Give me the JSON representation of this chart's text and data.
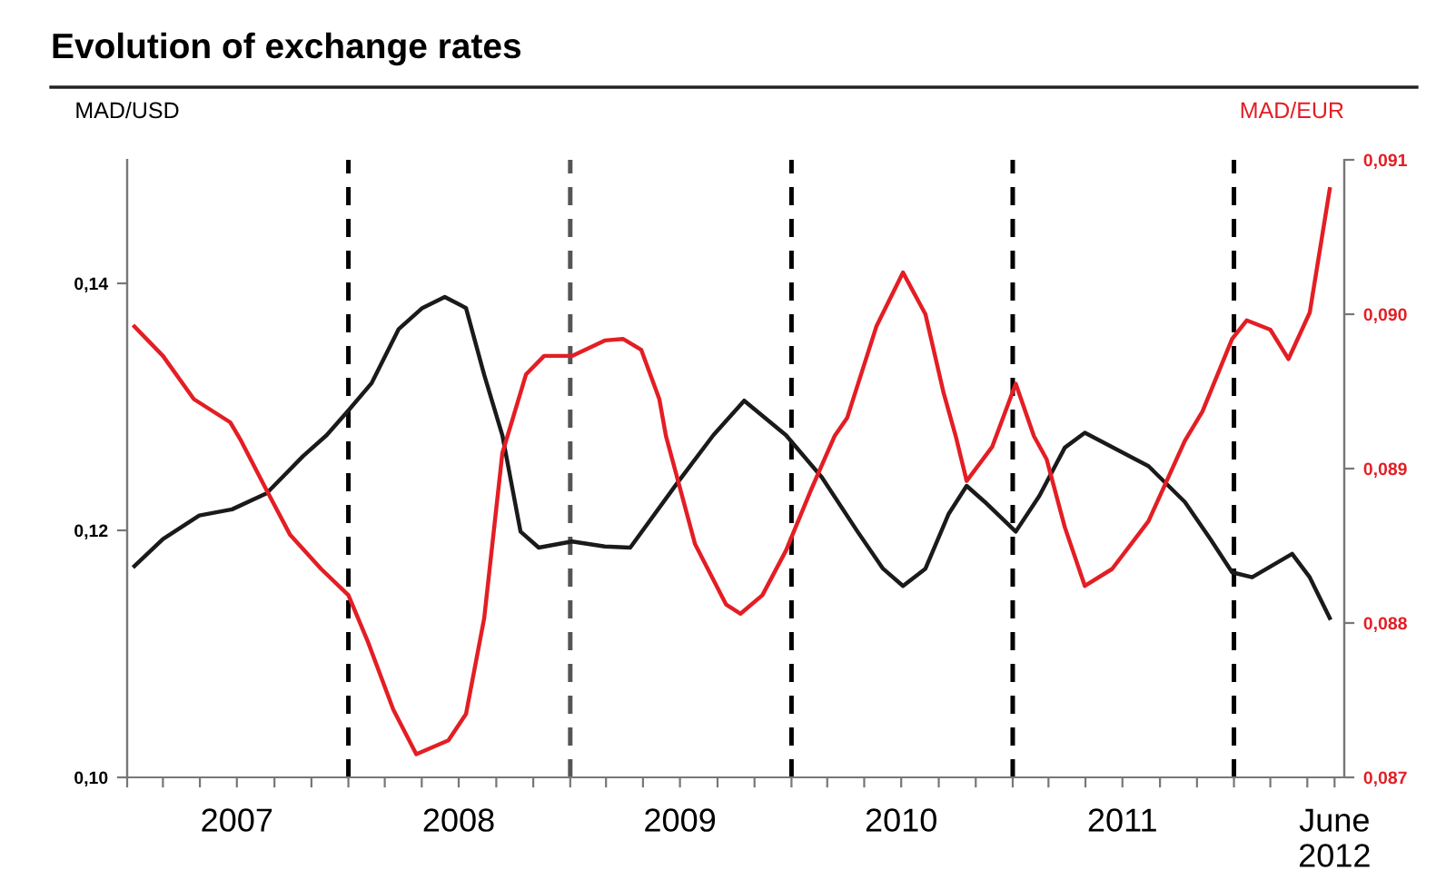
{
  "chart_data": {
    "type": "line",
    "title": "Evolution of exchange rates",
    "ylabel": "MAD/USD",
    "y2label": "MAD/EUR",
    "xlim": [
      "2007-01-01",
      "2012-07-01"
    ],
    "xticks": [
      {
        "value": "2007-01-01",
        "label": null
      },
      {
        "value": "2007-03-01",
        "label": null
      },
      {
        "value": "2007-05-01",
        "label": null
      },
      {
        "value": "2007-07-01",
        "label": "2007"
      },
      {
        "value": "2007-09-01",
        "label": null
      },
      {
        "value": "2007-11-01",
        "label": null
      },
      {
        "value": "2008-01-01",
        "label": null
      },
      {
        "value": "2008-03-01",
        "label": null
      },
      {
        "value": "2008-05-01",
        "label": null
      },
      {
        "value": "2008-07-01",
        "label": "2008"
      },
      {
        "value": "2008-09-01",
        "label": null
      },
      {
        "value": "2008-11-01",
        "label": null
      },
      {
        "value": "2009-01-01",
        "label": null
      },
      {
        "value": "2009-03-01",
        "label": null
      },
      {
        "value": "2009-05-01",
        "label": null
      },
      {
        "value": "2009-07-01",
        "label": "2009"
      },
      {
        "value": "2009-09-01",
        "label": null
      },
      {
        "value": "2009-11-01",
        "label": null
      },
      {
        "value": "2010-01-01",
        "label": null
      },
      {
        "value": "2010-03-01",
        "label": null
      },
      {
        "value": "2010-05-01",
        "label": null
      },
      {
        "value": "2010-07-01",
        "label": "2010"
      },
      {
        "value": "2010-09-01",
        "label": null
      },
      {
        "value": "2010-11-01",
        "label": null
      },
      {
        "value": "2011-01-01",
        "label": null
      },
      {
        "value": "2011-03-01",
        "label": null
      },
      {
        "value": "2011-05-01",
        "label": null
      },
      {
        "value": "2011-07-01",
        "label": "2011"
      },
      {
        "value": "2011-09-01",
        "label": null
      },
      {
        "value": "2011-11-01",
        "label": null
      },
      {
        "value": "2012-01-01",
        "label": null
      },
      {
        "value": "2012-03-01",
        "label": null
      },
      {
        "value": "2012-05-01",
        "label": null
      },
      {
        "value": "2012-06-15",
        "label": "June\n2012"
      }
    ],
    "ylim": [
      0.1,
      0.15
    ],
    "yticks": [
      {
        "value": 0.1,
        "label": "0,10"
      },
      {
        "value": 0.12,
        "label": "0,12"
      },
      {
        "value": 0.14,
        "label": "0,14"
      }
    ],
    "y2lim": [
      0.087,
      0.091
    ],
    "y2ticks": [
      {
        "value": 0.087,
        "label": "0,087"
      },
      {
        "value": 0.088,
        "label": "0,088"
      },
      {
        "value": 0.089,
        "label": "0,089"
      },
      {
        "value": 0.09,
        "label": "0,090"
      },
      {
        "value": 0.091,
        "label": "0,091"
      }
    ],
    "ref_lines": [
      {
        "axis": "x",
        "value": "2008-01-01",
        "label": null,
        "color": "#000000",
        "line_style": "dashed"
      },
      {
        "axis": "x",
        "value": "2009-01-01",
        "label": null,
        "color": "#555555",
        "line_style": "dashed"
      },
      {
        "axis": "x",
        "value": "2010-01-01",
        "label": null,
        "color": "#000000",
        "line_style": "dashed"
      },
      {
        "axis": "x",
        "value": "2011-01-01",
        "label": null,
        "color": "#000000",
        "line_style": "dashed"
      },
      {
        "axis": "x",
        "value": "2012-01-01",
        "label": null,
        "color": "#000000",
        "line_style": "dashed"
      }
    ],
    "grid": false,
    "legend": false,
    "marker": "none",
    "line_style": "solid",
    "series": [
      {
        "color": "#1a1a1a",
        "x": [
          "2007-01-13",
          "2007-03-01",
          "2007-04-30",
          "2007-06-23",
          "2007-08-19",
          "2007-10-18",
          "2007-11-26",
          "2008-01-01",
          "2008-02-08",
          "2008-03-24",
          "2008-05-02",
          "2008-06-08",
          "2008-07-13",
          "2008-08-12",
          "2008-09-11",
          "2008-10-11",
          "2008-11-10",
          "2009-01-04",
          "2009-02-27",
          "2009-04-10",
          "2009-06-26",
          "2009-08-25",
          "2009-10-15",
          "2009-12-23",
          "2010-02-20",
          "2010-04-20",
          "2010-06-01",
          "2010-07-04",
          "2010-08-10",
          "2010-09-17",
          "2010-10-17",
          "2010-11-16",
          "2011-01-06",
          "2011-02-14",
          "2011-03-28",
          "2011-04-30",
          "2011-08-13",
          "2011-10-12",
          "2011-11-23",
          "2011-12-29",
          "2012-01-31",
          "2012-04-06",
          "2012-05-05",
          "2012-06-07"
        ],
        "values": [
          0.1171,
          0.1193,
          0.1212,
          0.1217,
          0.123,
          0.126,
          0.1277,
          0.1297,
          0.1319,
          0.1363,
          0.138,
          0.1389,
          0.138,
          0.1326,
          0.1277,
          0.1199,
          0.1186,
          0.1191,
          0.1187,
          0.1186,
          0.1238,
          0.1277,
          0.1305,
          0.1277,
          0.1243,
          0.1199,
          0.1169,
          0.1155,
          0.1169,
          0.1213,
          0.1236,
          0.1223,
          0.1199,
          0.1228,
          0.1267,
          0.1279,
          0.1252,
          0.1223,
          0.1193,
          0.1166,
          0.1162,
          0.1181,
          0.1162,
          0.1129
        ]
      },
      {
        "color": "#e31e24",
        "axis": "y2",
        "x": [
          "2007-01-13",
          "2007-03-01",
          "2007-04-21",
          "2007-06-20",
          "2007-07-08",
          "2007-08-19",
          "2007-09-27",
          "2007-11-17",
          "2008-01-01",
          "2008-02-02",
          "2008-03-15",
          "2008-04-22",
          "2008-06-14",
          "2008-07-13",
          "2008-08-12",
          "2008-09-11",
          "2008-10-20",
          "2008-11-19",
          "2009-01-04",
          "2009-02-27",
          "2009-03-29",
          "2009-04-28",
          "2009-05-28",
          "2009-06-08",
          "2009-07-26",
          "2009-09-15",
          "2009-10-09",
          "2009-11-14",
          "2009-12-23",
          "2010-02-02",
          "2010-03-13",
          "2010-04-03",
          "2010-05-21",
          "2010-07-04",
          "2010-08-10",
          "2010-09-09",
          "2010-09-29",
          "2010-10-17",
          "2010-11-28",
          "2011-01-06",
          "2011-02-05",
          "2011-02-26",
          "2011-03-28",
          "2011-04-30",
          "2011-06-14",
          "2011-08-13",
          "2011-10-12",
          "2011-11-10",
          "2011-12-29",
          "2012-01-22",
          "2012-03-01",
          "2012-03-31",
          "2012-05-05",
          "2012-06-07"
        ],
        "values": [
          0.08992,
          0.08973,
          0.08945,
          0.0893,
          0.08918,
          0.08886,
          0.08857,
          0.08835,
          0.08818,
          0.08788,
          0.08744,
          0.08715,
          0.08724,
          0.08741,
          0.08803,
          0.0891,
          0.08961,
          0.08973,
          0.08973,
          0.08983,
          0.08984,
          0.08977,
          0.08945,
          0.08921,
          0.08851,
          0.08812,
          0.08806,
          0.08818,
          0.08847,
          0.08886,
          0.08921,
          0.08933,
          0.08992,
          0.09027,
          0.09,
          0.08949,
          0.08921,
          0.08892,
          0.08914,
          0.08955,
          0.08921,
          0.08906,
          0.08862,
          0.08824,
          0.08835,
          0.08866,
          0.08918,
          0.08937,
          0.08984,
          0.08996,
          0.0899,
          0.08971,
          0.09001,
          0.09081
        ]
      }
    ]
  }
}
